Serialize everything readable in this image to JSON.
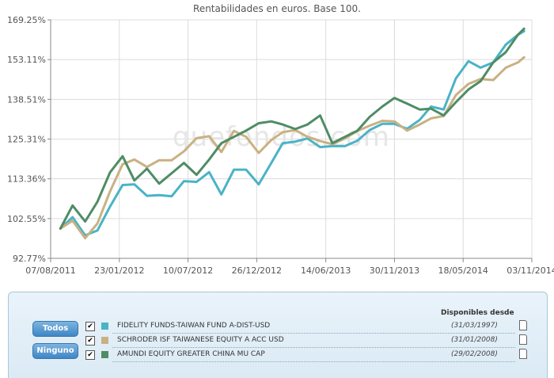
{
  "chart_data": {
    "type": "line",
    "title": "Rentabilidades en euros. Base 100.",
    "watermark": "quefondos.com",
    "y_ticks": [
      "92.77%",
      "102.55%",
      "113.36%",
      "125.31%",
      "138.51%",
      "153.11%",
      "169.25%"
    ],
    "y_tick_values": [
      92.77,
      102.55,
      113.36,
      125.31,
      138.51,
      153.11,
      169.25
    ],
    "y_scale": "log",
    "ylim": [
      92.77,
      169.25
    ],
    "x_ticks": [
      "07/08/2011",
      "23/01/2012",
      "10/07/2012",
      "26/12/2012",
      "14/06/2013",
      "30/11/2013",
      "18/05/2014",
      "03/11/2014"
    ],
    "x_tick_dates": [
      "2011-08-07",
      "2012-01-23",
      "2012-07-10",
      "2012-12-26",
      "2013-06-14",
      "2013-11-30",
      "2014-05-18",
      "2014-11-03"
    ],
    "xlim": [
      "2011-08-07",
      "2014-11-03"
    ],
    "grid": true,
    "dates": [
      "2011-08-31",
      "2011-09-30",
      "2011-10-31",
      "2011-11-30",
      "2011-12-31",
      "2012-01-31",
      "2012-02-29",
      "2012-03-31",
      "2012-04-30",
      "2012-05-31",
      "2012-06-30",
      "2012-07-31",
      "2012-08-31",
      "2012-09-30",
      "2012-10-31",
      "2012-11-30",
      "2012-12-31",
      "2013-01-31",
      "2013-02-28",
      "2013-03-31",
      "2013-04-30",
      "2013-05-31",
      "2013-06-30",
      "2013-07-31",
      "2013-08-31",
      "2013-09-30",
      "2013-10-31",
      "2013-11-30",
      "2013-12-31",
      "2014-01-31",
      "2014-02-28",
      "2014-03-31",
      "2014-04-30",
      "2014-05-31",
      "2014-06-30",
      "2014-07-31",
      "2014-08-31",
      "2014-09-30",
      "2014-10-15"
    ],
    "series": [
      {
        "name": "FIDELITY FUNDS-TAIWAN FUND A-DIST-USD",
        "color": "#4ab3c6",
        "values": [
          100.0,
          102.9,
          98.3,
          99.5,
          105.7,
          111.6,
          111.8,
          108.6,
          108.8,
          108.5,
          112.7,
          112.5,
          115.3,
          109.0,
          116.0,
          116.0,
          111.8,
          118.0,
          124.0,
          124.5,
          125.5,
          122.8,
          123.1,
          123.1,
          124.8,
          128.2,
          130.2,
          130.2,
          128.6,
          131.5,
          136.0,
          135.0,
          146.0,
          152.5,
          150.0,
          152.0,
          159.0,
          163.0,
          164.5
        ]
      },
      {
        "name": "SCHRODER ISF TAIWANESE EQUITY A ACC USD",
        "color": "#c9b183",
        "values": [
          100.0,
          102.0,
          97.6,
          101.3,
          109.8,
          117.6,
          119.0,
          116.8,
          118.8,
          118.8,
          121.5,
          125.6,
          126.2,
          121.3,
          127.9,
          126.0,
          121.0,
          125.0,
          127.5,
          128.2,
          126.0,
          124.7,
          123.7,
          125.5,
          127.9,
          129.6,
          131.2,
          131.0,
          128.0,
          130.0,
          132.0,
          132.8,
          140.0,
          144.0,
          145.8,
          145.4,
          150.0,
          152.0,
          154.0
        ]
      },
      {
        "name": "AMUNDI EQUITY GREATER CHINA MU CAP",
        "color": "#4f8c65",
        "values": [
          100.0,
          106.0,
          101.8,
          107.0,
          115.2,
          120.0,
          112.9,
          116.3,
          112.0,
          115.0,
          118.0,
          114.5,
          119.0,
          124.0,
          126.0,
          128.0,
          130.4,
          131.0,
          130.0,
          128.5,
          130.0,
          133.0,
          124.0,
          126.0,
          128.0,
          132.5,
          136.0,
          139.0,
          137.0,
          135.0,
          135.3,
          133.0,
          137.5,
          142.0,
          145.0,
          152.0,
          156.0,
          163.0,
          165.5
        ]
      }
    ]
  },
  "legend_panel": {
    "all_button": "Todos",
    "none_button": "Ninguno",
    "since_header": "Disponibles desde",
    "checkbox_mark": "✔",
    "funds": [
      {
        "name": "FIDELITY FUNDS-TAIWAN FUND A-DIST-USD",
        "since": "(31/03/1997)",
        "color": "#4ab3c6",
        "checked": true
      },
      {
        "name": "SCHRODER ISF TAIWANESE EQUITY A ACC USD",
        "since": "(31/01/2008)",
        "color": "#c9b183",
        "checked": true
      },
      {
        "name": "AMUNDI EQUITY GREATER CHINA MU CAP",
        "since": "(29/02/2008)",
        "color": "#4f8c65",
        "checked": true
      }
    ]
  }
}
